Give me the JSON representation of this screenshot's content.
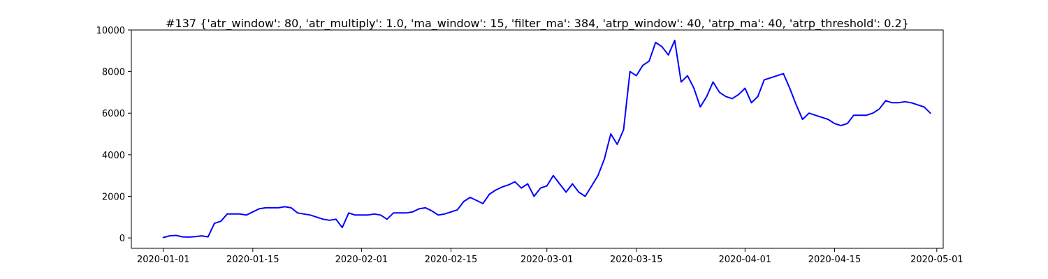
{
  "chart_data": {
    "type": "line",
    "title": "#137 {'atr_window': 80, 'atr_multiply': 1.0, 'ma_window': 15, 'filter_ma': 384, 'atrp_window': 40, 'atrp_ma': 40, 'atrp_threshold': 0.2}",
    "xlabel": "",
    "ylabel": "",
    "x_type": "date",
    "xlim": [
      "2019-12-27",
      "2020-05-02"
    ],
    "ylim": [
      -500,
      10000
    ],
    "x_ticks": [
      "2020-01-01",
      "2020-01-15",
      "2020-02-01",
      "2020-02-15",
      "2020-03-01",
      "2020-03-15",
      "2020-04-01",
      "2020-04-15",
      "2020-05-01"
    ],
    "x_tick_labels": [
      "2020-01-01",
      "2020-01-15",
      "2020-02-01",
      "2020-02-15",
      "2020-03-01",
      "2020-03-15",
      "2020-04-01",
      "2020-04-15",
      "2020-05-01"
    ],
    "y_ticks": [
      0,
      2000,
      4000,
      6000,
      8000,
      10000
    ],
    "y_tick_labels": [
      "0",
      "2000",
      "4000",
      "6000",
      "8000",
      "10000"
    ],
    "grid": false,
    "series": [
      {
        "color": "#0000ff",
        "x": [
          "2020-01-01",
          "2020-01-02",
          "2020-01-03",
          "2020-01-04",
          "2020-01-05",
          "2020-01-06",
          "2020-01-07",
          "2020-01-08",
          "2020-01-09",
          "2020-01-10",
          "2020-01-11",
          "2020-01-12",
          "2020-01-13",
          "2020-01-14",
          "2020-01-15",
          "2020-01-16",
          "2020-01-17",
          "2020-01-18",
          "2020-01-19",
          "2020-01-20",
          "2020-01-21",
          "2020-01-22",
          "2020-01-23",
          "2020-01-24",
          "2020-01-25",
          "2020-01-26",
          "2020-01-27",
          "2020-01-28",
          "2020-01-29",
          "2020-01-30",
          "2020-01-31",
          "2020-02-01",
          "2020-02-02",
          "2020-02-03",
          "2020-02-04",
          "2020-02-05",
          "2020-02-06",
          "2020-02-07",
          "2020-02-08",
          "2020-02-09",
          "2020-02-10",
          "2020-02-11",
          "2020-02-12",
          "2020-02-13",
          "2020-02-14",
          "2020-02-15",
          "2020-02-16",
          "2020-02-17",
          "2020-02-18",
          "2020-02-19",
          "2020-02-20",
          "2020-02-21",
          "2020-02-22",
          "2020-02-23",
          "2020-02-24",
          "2020-02-25",
          "2020-02-26",
          "2020-02-27",
          "2020-02-28",
          "2020-02-29",
          "2020-03-01",
          "2020-03-02",
          "2020-03-03",
          "2020-03-04",
          "2020-03-05",
          "2020-03-06",
          "2020-03-07",
          "2020-03-08",
          "2020-03-09",
          "2020-03-10",
          "2020-03-11",
          "2020-03-12",
          "2020-03-13",
          "2020-03-14",
          "2020-03-15",
          "2020-03-16",
          "2020-03-17",
          "2020-03-18",
          "2020-03-19",
          "2020-03-20",
          "2020-03-21",
          "2020-03-22",
          "2020-03-23",
          "2020-03-24",
          "2020-03-25",
          "2020-03-26",
          "2020-03-27",
          "2020-03-28",
          "2020-03-29",
          "2020-03-30",
          "2020-03-31",
          "2020-04-01",
          "2020-04-02",
          "2020-04-03",
          "2020-04-04",
          "2020-04-05",
          "2020-04-06",
          "2020-04-07",
          "2020-04-08",
          "2020-04-09",
          "2020-04-10",
          "2020-04-11",
          "2020-04-12",
          "2020-04-13",
          "2020-04-14",
          "2020-04-15",
          "2020-04-16",
          "2020-04-17",
          "2020-04-18",
          "2020-04-19",
          "2020-04-20",
          "2020-04-21",
          "2020-04-22",
          "2020-04-23",
          "2020-04-24",
          "2020-04-25",
          "2020-04-26",
          "2020-04-27",
          "2020-04-28",
          "2020-04-29",
          "2020-04-30"
        ],
        "y": [
          20,
          100,
          120,
          50,
          40,
          60,
          100,
          50,
          700,
          800,
          1150,
          1150,
          1150,
          1100,
          1250,
          1400,
          1450,
          1450,
          1450,
          1500,
          1450,
          1200,
          1150,
          1100,
          1000,
          900,
          850,
          900,
          500,
          1200,
          1100,
          1100,
          1100,
          1150,
          1100,
          900,
          1200,
          1200,
          1200,
          1250,
          1400,
          1450,
          1300,
          1100,
          1150,
          1250,
          1350,
          1750,
          1950,
          1800,
          1650,
          2100,
          2300,
          2450,
          2550,
          2700,
          2400,
          2600,
          2000,
          2400,
          2500,
          3000,
          2600,
          2200,
          2600,
          2200,
          2000,
          2500,
          3000,
          3800,
          5000,
          4500,
          5200,
          8000,
          7800,
          8300,
          8500,
          9400,
          9200,
          8800,
          9500,
          7500,
          7800,
          7200,
          6300,
          6800,
          7500,
          7000,
          6800,
          6700,
          6900,
          7200,
          6500,
          6800,
          7600,
          7700,
          7800,
          7900,
          7200,
          6400,
          5700,
          6000,
          5900,
          5800,
          5700,
          5500,
          5400,
          5500,
          5900,
          5900,
          5900,
          6000,
          6200,
          6600,
          6500,
          6500,
          6550,
          6500,
          6400,
          6300,
          6000
        ]
      }
    ]
  }
}
